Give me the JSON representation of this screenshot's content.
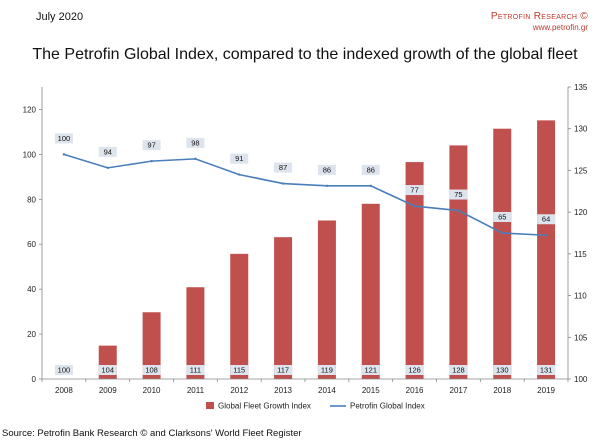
{
  "header": {
    "date": "July 2020",
    "brand_name": "Petrofin Research ©",
    "brand_url": "www.petrofin.gr"
  },
  "chart_data": {
    "type": "bar",
    "title": "The Petrofin Global Index, compared to the indexed growth of the global fleet",
    "categories": [
      "2008",
      "2009",
      "2010",
      "2011",
      "2012",
      "2013",
      "2014",
      "2015",
      "2016",
      "2017",
      "2018",
      "2019"
    ],
    "series": [
      {
        "name": "Global Fleet Growth Index",
        "type": "bar",
        "axis": "right",
        "color": "#c0504d",
        "values": [
          100,
          104,
          108,
          111,
          115,
          117,
          119,
          121,
          126,
          128,
          130,
          131
        ]
      },
      {
        "name": "Petrofin Global Index",
        "type": "line",
        "axis": "left",
        "color": "#4a7ebb",
        "values": [
          100,
          94,
          97,
          98,
          91,
          87,
          86,
          86,
          77,
          75,
          65,
          64
        ]
      }
    ],
    "left_axis": {
      "min": 0,
      "max": 130,
      "ticks": [
        0,
        20,
        40,
        60,
        80,
        100,
        120
      ]
    },
    "right_axis": {
      "min": 100,
      "max": 135,
      "ticks": [
        100,
        105,
        110,
        115,
        120,
        125,
        130,
        135
      ]
    },
    "legend_position": "bottom"
  },
  "footer": {
    "source": "Source: Petrofin Bank Research © and Clarksons' World Fleet Register"
  }
}
